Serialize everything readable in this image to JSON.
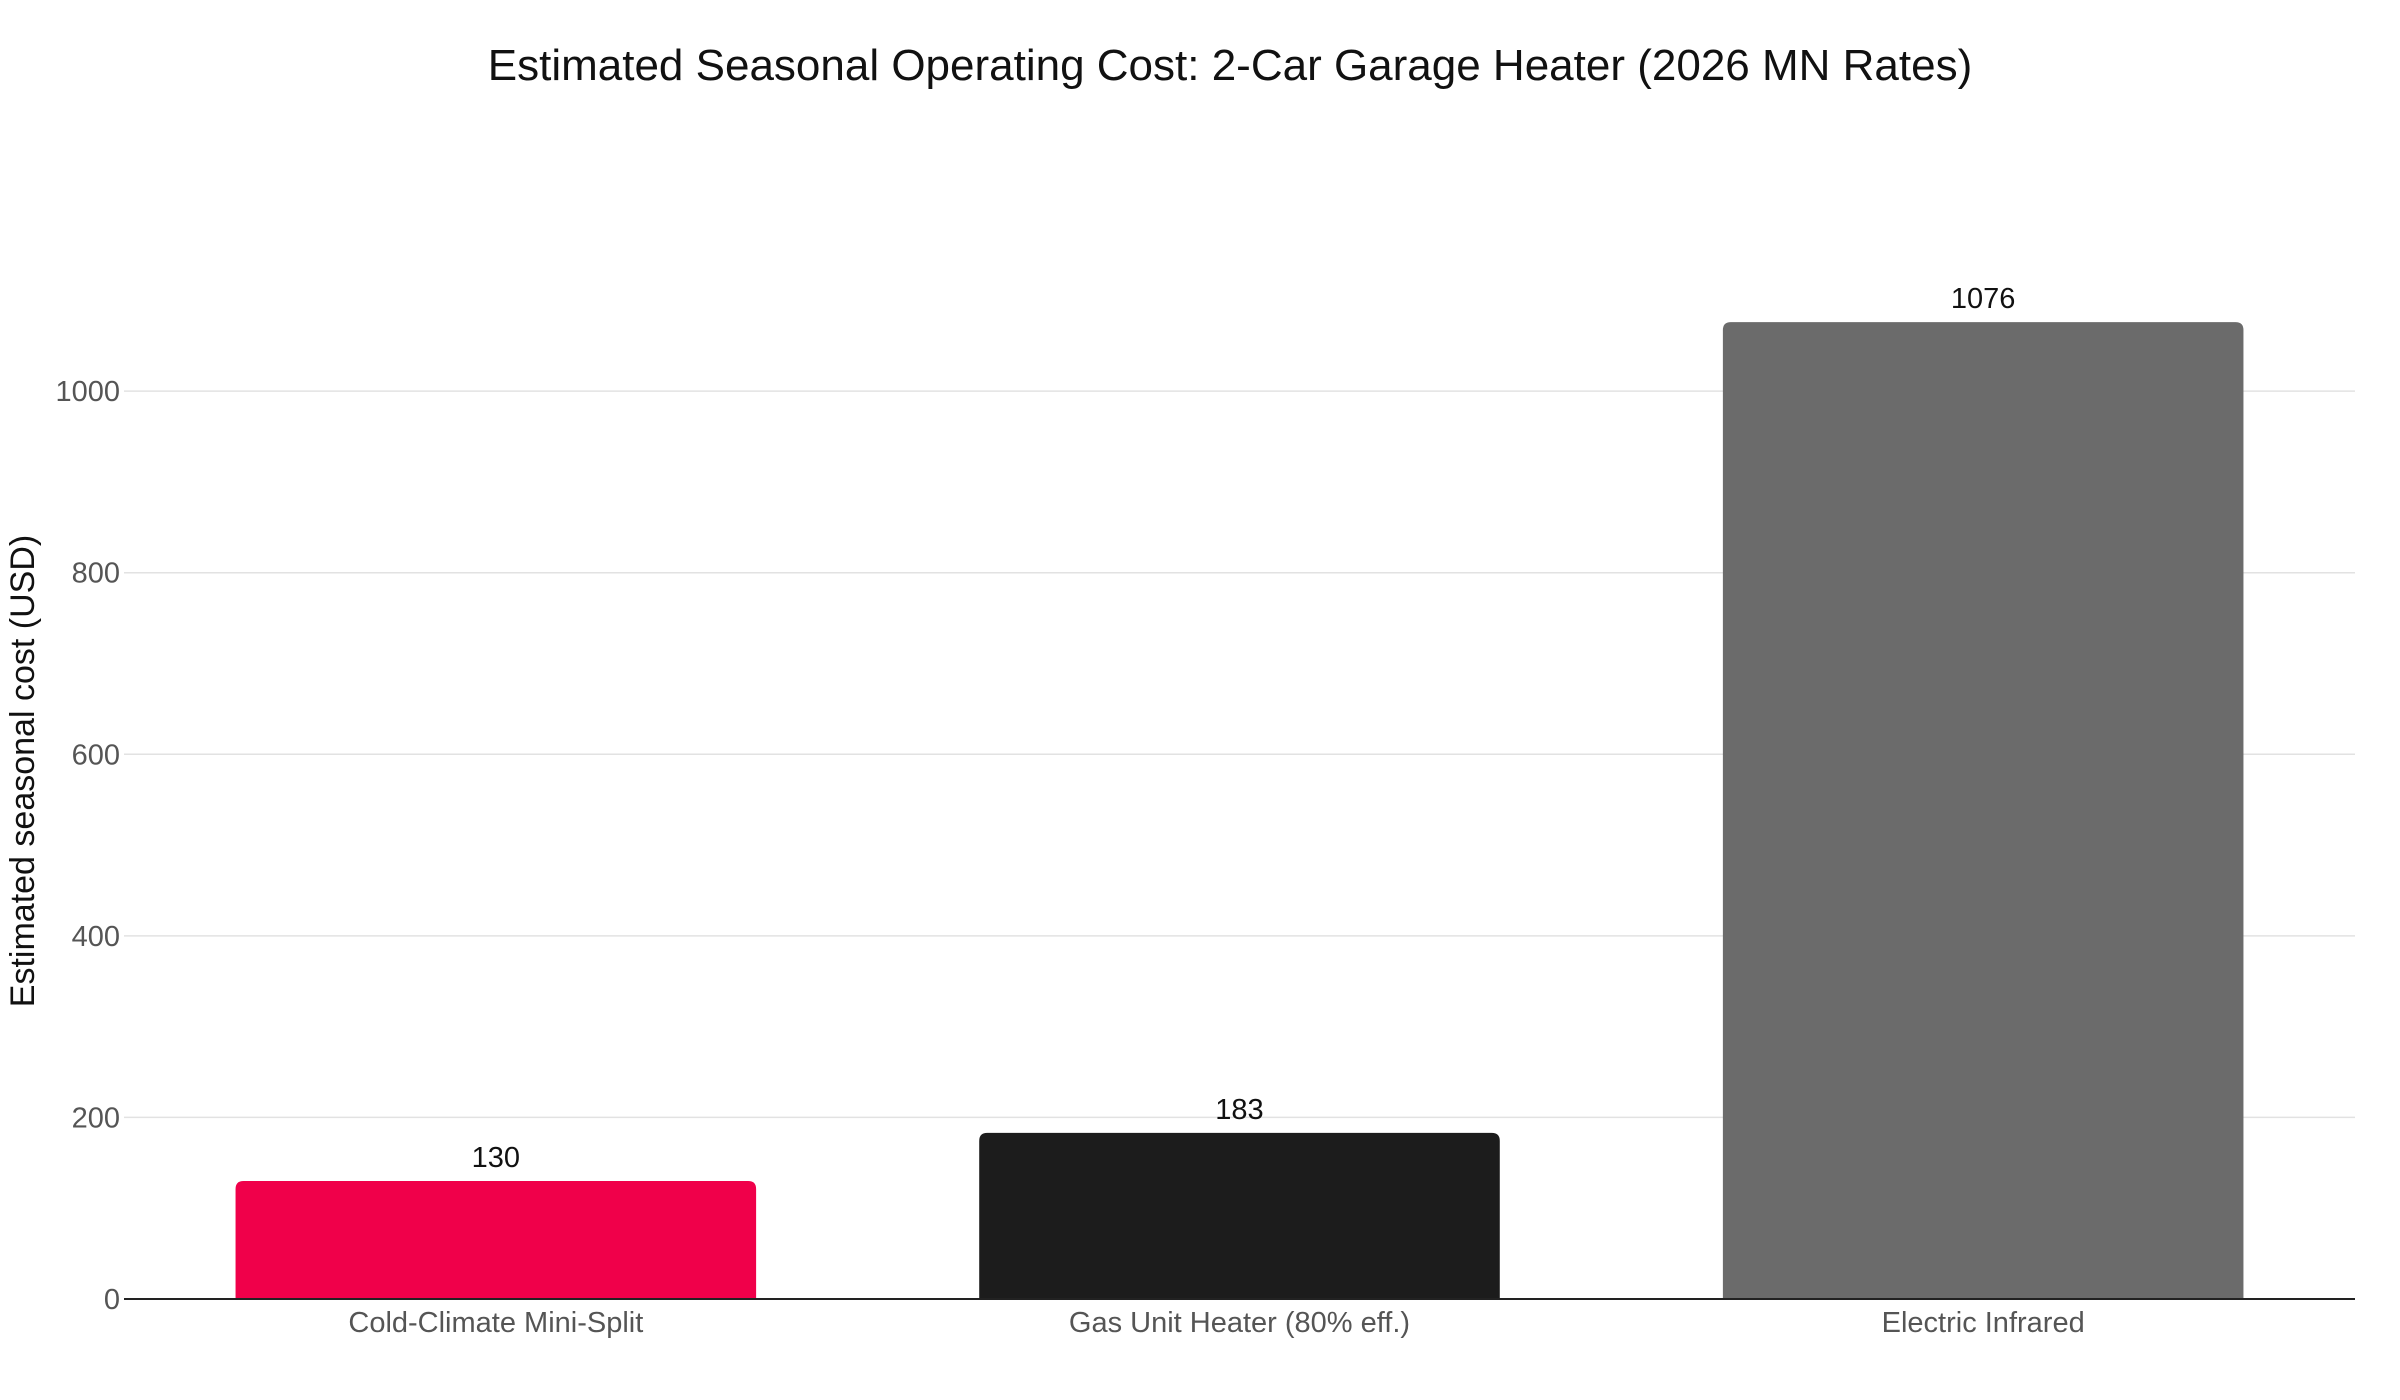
{
  "chart_data": {
    "type": "bar",
    "title": "Estimated Seasonal Operating Cost: 2-Car Garage Heater (2026 MN Rates)",
    "xlabel": "",
    "ylabel": "Estimated seasonal cost (USD)",
    "categories": [
      "Cold-Climate Mini-Split",
      "Gas Unit Heater (80% eff.)",
      "Electric Infrared"
    ],
    "values": [
      130,
      183,
      1076
    ],
    "data_labels": [
      "130",
      "183",
      "1076"
    ],
    "colors": [
      "#f0004a",
      "#1c1c1c",
      "#6b6b6b"
    ],
    "ylim": [
      0,
      1150
    ],
    "yticks": [
      0,
      200,
      400,
      600,
      800,
      1000
    ],
    "ytick_labels": [
      "0",
      "200",
      "400",
      "600",
      "800",
      "1000"
    ],
    "grid": true,
    "legend": "none"
  }
}
